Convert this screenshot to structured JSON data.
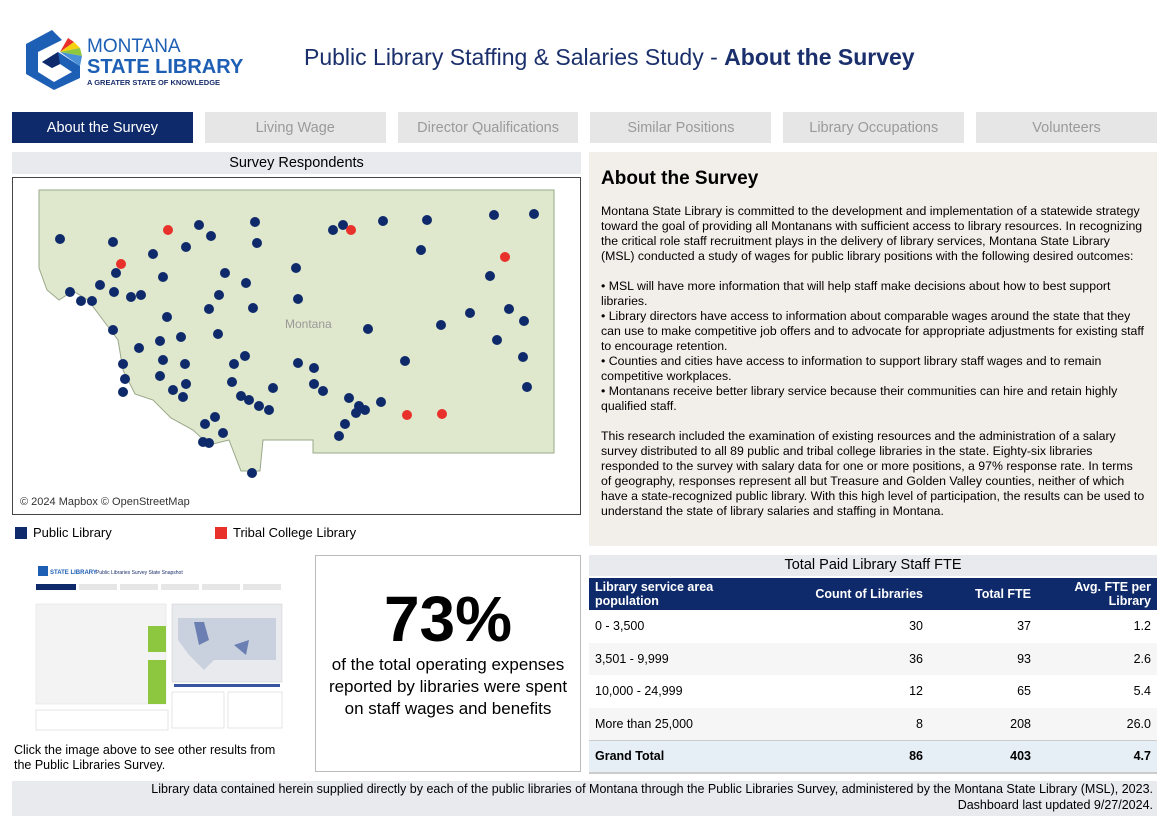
{
  "header": {
    "logo": {
      "line1": "MONTANA",
      "line2": "STATE LIBRARY",
      "tagline": "A GREATER STATE OF KNOWLEDGE"
    },
    "title_prefix": "Public Library Staffing & Salaries Study - ",
    "title_bold": "About the Survey"
  },
  "tabs": [
    {
      "label": "About the Survey",
      "active": true
    },
    {
      "label": "Living Wage"
    },
    {
      "label": "Director Qualifications"
    },
    {
      "label": "Similar Positions"
    },
    {
      "label": "Library Occupations"
    },
    {
      "label": "Volunteers"
    }
  ],
  "map": {
    "title": "Survey Respondents",
    "credit": "© 2024 Mapbox © OpenStreetMap",
    "place_label": "Montana",
    "legend": [
      {
        "label": "Public Library",
        "color": "#0f2a6b"
      },
      {
        "label": "Tribal College Library",
        "color": "#e8312a"
      }
    ]
  },
  "about": {
    "heading": "About the Survey",
    "paragraphs": [
      "Montana State Library is committed to the development and implementation of a statewide strategy toward the goal of providing all Montanans with sufficient access to library resources. In recognizing the critical role staff recruitment plays in the delivery of library services, Montana State Library (MSL) conducted a study of wages for public library positions with the following desired outcomes:",
      "• MSL will have more information that will help staff make decisions about how to best support libraries.",
      "• Library directors have access to information about comparable wages around the state that they can use to make competitive job offers and to advocate for appropriate adjustments for existing staff to encourage retention.",
      "• Counties and cities have access to information to support library staff wages and to remain competitive workplaces.",
      "• Montanans receive better library service because their communities can hire and retain highly qualified staff.",
      "This research included the examination of existing resources and the administration of a salary survey distributed to all 89 public and tribal college libraries in the state. Eighty-six libraries responded to the survey with salary data for one or more positions, a 97% response rate. In terms of geography, responses represent all but Treasure and Golden Valley counties, neither of which have a state-recognized public library. With this high level of participation, the results can be used to understand the state of library salaries and staffing in Montana."
    ]
  },
  "snapshot": {
    "title": "Public Libraries Survey State Snapshot",
    "caption": "Click the image above to see other results from the Public Libraries Survey."
  },
  "stat": {
    "value": "73%",
    "text": "of the total operating expenses reported by libraries were spent on staff wages and benefits"
  },
  "fte_table": {
    "title": "Total Paid Library Staff FTE",
    "headers": [
      "Library service area population",
      "Count of Libraries",
      "Total FTE",
      "Avg. FTE per Library"
    ],
    "rows": [
      [
        "0 - 3,500",
        "30",
        "37",
        "1.2"
      ],
      [
        "3,501 - 9,999",
        "36",
        "93",
        "2.6"
      ],
      [
        "10,000 - 24,999",
        "12",
        "65",
        "5.4"
      ],
      [
        "More than 25,000",
        "8",
        "208",
        "26.0"
      ]
    ],
    "total": [
      "Grand Total",
      "86",
      "403",
      "4.7"
    ]
  },
  "footer": {
    "line1": "Library data contained herein supplied directly by each of the public libraries of Montana through the Public Libraries Survey, administered by the Montana State Library (MSL), 2023.",
    "line2": "Dashboard last updated 9/27/2024."
  }
}
